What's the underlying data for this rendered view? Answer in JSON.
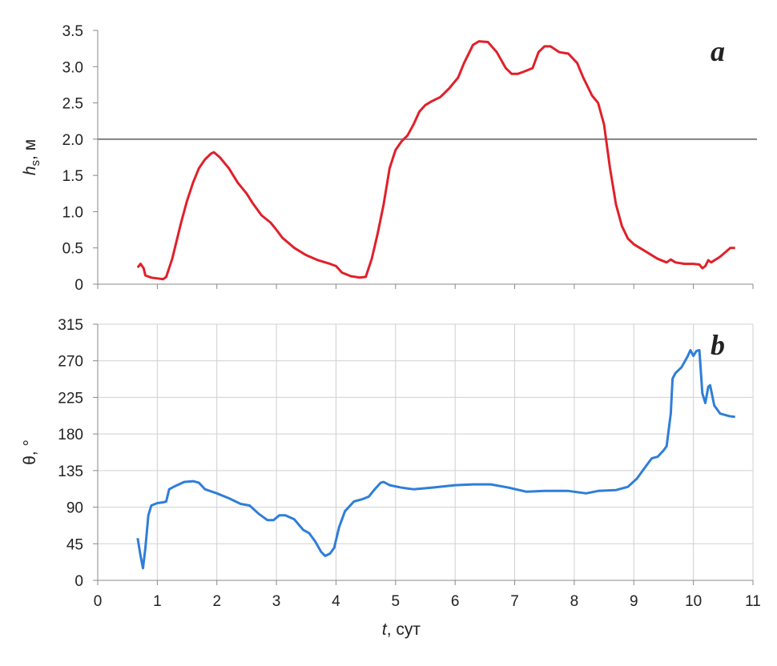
{
  "chart_data": [
    {
      "type": "line",
      "panel_label": "a",
      "y_label": {
        "symbol": "h",
        "subscript": "s",
        "unit": ", м"
      },
      "xlim": [
        0,
        11
      ],
      "xticks": [
        0,
        1,
        2,
        3,
        4,
        5,
        6,
        7,
        8,
        9,
        10,
        11
      ],
      "ylim": [
        0,
        3.5
      ],
      "yticks": [
        0,
        0.5,
        {
          "value": 1,
          "label": "1.0"
        },
        1.5,
        {
          "value": 2,
          "label": "2.0"
        },
        2.5,
        {
          "value": 3,
          "label": "3.0"
        },
        3.5
      ],
      "grid": false,
      "hline": 2,
      "hline_color": "#808080",
      "series": [
        {
          "color": "#e0202a",
          "x": [
            0.67,
            0.72,
            0.77,
            0.8,
            0.9,
            1.0,
            1.1,
            1.15,
            1.25,
            1.4,
            1.5,
            1.6,
            1.7,
            1.8,
            1.9,
            1.95,
            2.05,
            2.2,
            2.35,
            2.5,
            2.6,
            2.75,
            2.9,
            3.0,
            3.1,
            3.3,
            3.5,
            3.7,
            3.9,
            4.0,
            4.1,
            4.25,
            4.4,
            4.5,
            4.6,
            4.7,
            4.8,
            4.9,
            5.0,
            5.1,
            5.2,
            5.3,
            5.4,
            5.5,
            5.6,
            5.75,
            5.9,
            6.05,
            6.15,
            6.3,
            6.4,
            6.55,
            6.7,
            6.85,
            6.95,
            7.05,
            7.15,
            7.3,
            7.4,
            7.5,
            7.6,
            7.75,
            7.9,
            8.05,
            8.15,
            8.3,
            8.4,
            8.5,
            8.6,
            8.7,
            8.8,
            8.9,
            9.0,
            9.2,
            9.4,
            9.55,
            9.62,
            9.7,
            9.85,
            10.0,
            10.1,
            10.15,
            10.2,
            10.25,
            10.3,
            10.45,
            10.55,
            10.62,
            10.7
          ],
          "values": [
            0.23,
            0.28,
            0.22,
            0.12,
            0.09,
            0.08,
            0.07,
            0.1,
            0.35,
            0.85,
            1.15,
            1.4,
            1.6,
            1.72,
            1.8,
            1.82,
            1.75,
            1.6,
            1.4,
            1.25,
            1.12,
            0.95,
            0.85,
            0.75,
            0.64,
            0.5,
            0.4,
            0.33,
            0.28,
            0.25,
            0.16,
            0.11,
            0.09,
            0.1,
            0.35,
            0.7,
            1.1,
            1.6,
            1.85,
            1.97,
            2.05,
            2.2,
            2.38,
            2.47,
            2.52,
            2.58,
            2.7,
            2.85,
            3.05,
            3.3,
            3.35,
            3.34,
            3.2,
            2.98,
            2.9,
            2.9,
            2.93,
            2.98,
            3.2,
            3.28,
            3.28,
            3.2,
            3.18,
            3.05,
            2.85,
            2.6,
            2.5,
            2.2,
            1.6,
            1.1,
            0.8,
            0.63,
            0.55,
            0.45,
            0.35,
            0.3,
            0.34,
            0.3,
            0.28,
            0.28,
            0.27,
            0.22,
            0.25,
            0.33,
            0.3,
            0.38,
            0.45,
            0.5,
            0.5
          ]
        }
      ]
    },
    {
      "type": "line",
      "panel_label": "b",
      "y_label": {
        "symbol": "θ",
        "unit": ", °"
      },
      "x_label": {
        "symbol": "t",
        "unit": ", сут"
      },
      "xlim": [
        0,
        11
      ],
      "xticks": [
        0,
        1,
        2,
        3,
        4,
        5,
        6,
        7,
        8,
        9,
        10,
        11
      ],
      "ylim": [
        0,
        315
      ],
      "yticks": [
        0,
        45,
        90,
        135,
        180,
        225,
        270,
        315
      ],
      "grid": true,
      "series": [
        {
          "color": "#2f7ed8",
          "x": [
            0.67,
            0.72,
            0.76,
            0.8,
            0.85,
            0.9,
            1.0,
            1.1,
            1.15,
            1.2,
            1.3,
            1.45,
            1.6,
            1.7,
            1.8,
            2.0,
            2.2,
            2.4,
            2.55,
            2.7,
            2.85,
            2.95,
            3.05,
            3.15,
            3.3,
            3.45,
            3.55,
            3.65,
            3.75,
            3.82,
            3.9,
            3.97,
            4.05,
            4.15,
            4.3,
            4.45,
            4.55,
            4.65,
            4.75,
            4.8,
            4.9,
            5.1,
            5.3,
            5.6,
            6.0,
            6.3,
            6.6,
            6.9,
            7.2,
            7.5,
            7.9,
            8.2,
            8.4,
            8.7,
            8.9,
            9.05,
            9.2,
            9.3,
            9.4,
            9.5,
            9.55,
            9.62,
            9.65,
            9.7,
            9.8,
            9.9,
            9.95,
            10.0,
            10.05,
            10.1,
            10.15,
            10.2,
            10.25,
            10.28,
            10.35,
            10.45,
            10.6,
            10.7
          ],
          "values": [
            52,
            30,
            15,
            40,
            80,
            92,
            95,
            96,
            97,
            112,
            116,
            121,
            122,
            120,
            112,
            107,
            101,
            94,
            92,
            82,
            74,
            74,
            80,
            80,
            75,
            62,
            58,
            48,
            35,
            30,
            33,
            40,
            65,
            85,
            97,
            100,
            103,
            112,
            120,
            121,
            117,
            114,
            112,
            114,
            117,
            118,
            118,
            114,
            109,
            110,
            110,
            107,
            110,
            111,
            115,
            125,
            140,
            150,
            152,
            160,
            165,
            205,
            248,
            255,
            262,
            275,
            283,
            276,
            282,
            283,
            230,
            218,
            238,
            240,
            215,
            205,
            202,
            201
          ]
        }
      ]
    }
  ]
}
